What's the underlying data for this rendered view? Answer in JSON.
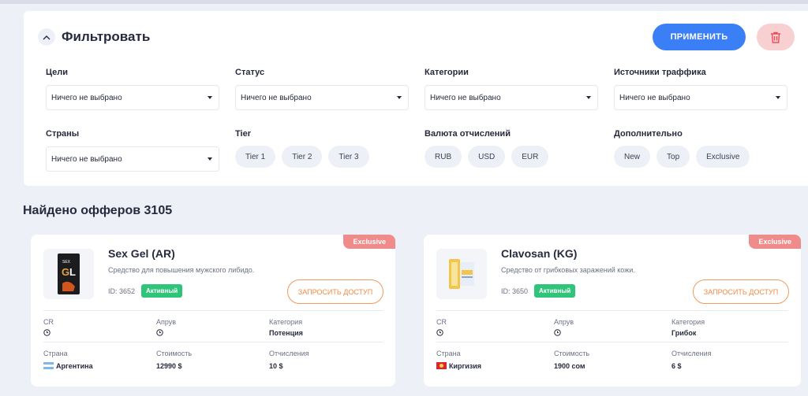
{
  "filter": {
    "title": "Фильтровать",
    "apply_label": "ПРИМЕНИТЬ",
    "goals": {
      "label": "Цели",
      "value": "Ничего не выбрано"
    },
    "status": {
      "label": "Статус",
      "value": "Ничего не выбрано"
    },
    "categories": {
      "label": "Категории",
      "value": "Ничего не выбрано"
    },
    "traffic": {
      "label": "Источники траффика",
      "value": "Ничего не выбрано"
    },
    "countries": {
      "label": "Страны",
      "value": "Ничего не выбрано"
    },
    "tier": {
      "label": "Tier",
      "options": [
        "Tier 1",
        "Tier 2",
        "Tier 3"
      ]
    },
    "currency": {
      "label": "Валюта отчислений",
      "options": [
        "RUB",
        "USD",
        "EUR"
      ]
    },
    "extra": {
      "label": "Дополнительно",
      "options": [
        "New",
        "Top",
        "Exclusive"
      ]
    }
  },
  "results": {
    "title": "Найдено офферов 3105"
  },
  "offers": [
    {
      "badge": "Exclusive",
      "name": "Sex Gel (AR)",
      "description": "Средство для повышения мужского либидо.",
      "id": "ID: 3652",
      "status": "Активный",
      "request_label": "ЗАПРОСИТЬ ДОСТУП",
      "cr_label": "CR",
      "approve_label": "Апрув",
      "category_label": "Категория",
      "category_value": "Потенция",
      "country_label": "Страна",
      "country_value": "Аргентина",
      "cost_label": "Стоимость",
      "cost_value": "12990 $",
      "payout_label": "Отчисления",
      "payout_value": "10 $"
    },
    {
      "badge": "Exclusive",
      "name": "Clavosan (KG)",
      "description": "Средство от грибковых заражений кожи.",
      "id": "ID: 3650",
      "status": "Активный",
      "request_label": "ЗАПРОСИТЬ ДОСТУП",
      "cr_label": "CR",
      "approve_label": "Апрув",
      "category_label": "Категория",
      "category_value": "Грибок",
      "country_label": "Страна",
      "country_value": "Киргизия",
      "cost_label": "Стоимость",
      "cost_value": "1900 сом",
      "payout_label": "Отчисления",
      "payout_value": "6 $"
    }
  ]
}
